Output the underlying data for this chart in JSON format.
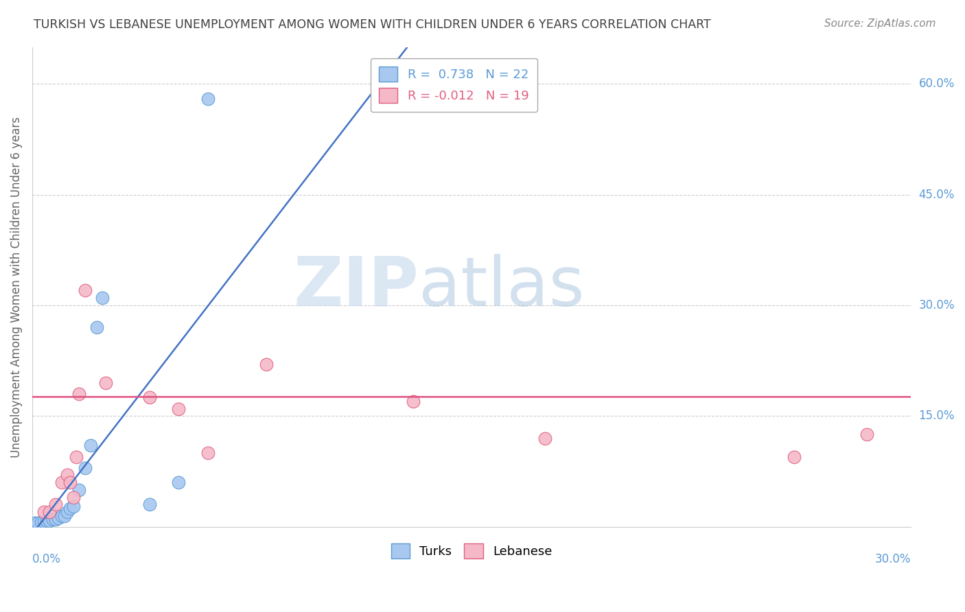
{
  "title": "TURKISH VS LEBANESE UNEMPLOYMENT AMONG WOMEN WITH CHILDREN UNDER 6 YEARS CORRELATION CHART",
  "source": "Source: ZipAtlas.com",
  "xlabel_bottom_left": "0.0%",
  "xlabel_bottom_right": "30.0%",
  "ylabel": "Unemployment Among Women with Children Under 6 years",
  "y_tick_labels": [
    "15.0%",
    "30.0%",
    "45.0%",
    "60.0%"
  ],
  "y_tick_values": [
    0.15,
    0.3,
    0.45,
    0.6
  ],
  "xmin": 0.0,
  "xmax": 0.3,
  "ymin": 0.0,
  "ymax": 0.65,
  "watermark_zip": "ZIP",
  "watermark_atlas": "atlas",
  "turks_color": "#a8c8f0",
  "turks_edge_color": "#5b9bd5",
  "lebanese_color": "#f4b8c8",
  "lebanese_edge_color": "#e06080",
  "turks_R": 0.738,
  "turks_N": 22,
  "lebanese_R": -0.012,
  "lebanese_N": 19,
  "turks_x": [
    0.001,
    0.002,
    0.003,
    0.004,
    0.005,
    0.006,
    0.007,
    0.008,
    0.009,
    0.01,
    0.011,
    0.012,
    0.013,
    0.014,
    0.016,
    0.018,
    0.02,
    0.022,
    0.024,
    0.04,
    0.05,
    0.06
  ],
  "turks_y": [
    0.005,
    0.005,
    0.006,
    0.007,
    0.008,
    0.008,
    0.01,
    0.01,
    0.012,
    0.015,
    0.015,
    0.02,
    0.025,
    0.028,
    0.05,
    0.08,
    0.11,
    0.27,
    0.31,
    0.03,
    0.06,
    0.58
  ],
  "lebanese_x": [
    0.004,
    0.006,
    0.008,
    0.01,
    0.012,
    0.013,
    0.014,
    0.015,
    0.016,
    0.018,
    0.025,
    0.04,
    0.05,
    0.06,
    0.08,
    0.13,
    0.175,
    0.26,
    0.285
  ],
  "lebanese_y": [
    0.02,
    0.02,
    0.03,
    0.06,
    0.07,
    0.06,
    0.04,
    0.095,
    0.18,
    0.32,
    0.195,
    0.175,
    0.16,
    0.1,
    0.22,
    0.17,
    0.12,
    0.095,
    0.125
  ],
  "trend_line_color_turks": "#4472c4",
  "trend_line_color_lebanese": "#e05080",
  "background_color": "#ffffff",
  "grid_color": "#cccccc",
  "title_color": "#404040",
  "label_color": "#5b9bd5",
  "zip_color": "#c5d8ee",
  "atlas_color": "#a8c4e0"
}
